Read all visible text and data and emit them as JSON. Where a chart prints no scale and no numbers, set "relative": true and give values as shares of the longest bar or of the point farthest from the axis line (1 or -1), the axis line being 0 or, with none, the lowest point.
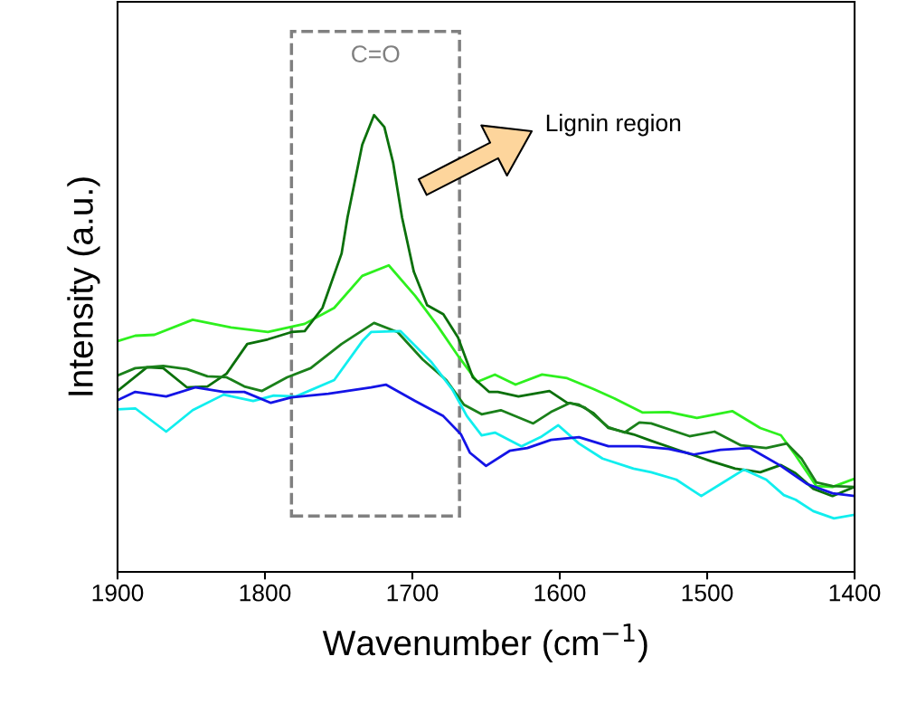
{
  "chart_data": {
    "type": "line",
    "relative": true,
    "xlabel": "Wavenumber (cm$^{−1}$)",
    "ylabel": "Intensity (a.u.)",
    "xlim": [
      1900,
      1400
    ],
    "xticks": [
      1900,
      1800,
      1700,
      1600,
      1500,
      1400
    ],
    "tick_labels": "x",
    "grid": false,
    "legend": false,
    "line_style": "solid",
    "annotations": [
      "C=O",
      "Lignin region"
    ],
    "series": [
      {
        "color": "#2ef01e",
        "x": [
          1900,
          1888,
          1875,
          1849,
          1823,
          1798,
          1773,
          1753,
          1734,
          1716,
          1698,
          1683,
          1669,
          1656,
          1644,
          1630,
          1612,
          1595,
          1577,
          1563,
          1544,
          1526,
          1507,
          1483,
          1464,
          1450,
          1440,
          1426,
          1415,
          1400
        ],
        "values": [
          0.505,
          0.517,
          0.519,
          0.552,
          0.535,
          0.525,
          0.543,
          0.578,
          0.648,
          0.671,
          0.604,
          0.539,
          0.473,
          0.416,
          0.432,
          0.41,
          0.432,
          0.424,
          0.4,
          0.38,
          0.349,
          0.35,
          0.337,
          0.352,
          0.315,
          0.299,
          0.255,
          0.188,
          0.186,
          0.204
        ]
      },
      {
        "color": "#0b700b",
        "x": [
          1900,
          1880,
          1869,
          1853,
          1839,
          1826,
          1812,
          1798,
          1782,
          1773,
          1761,
          1748,
          1744,
          1734,
          1726,
          1719,
          1713,
          1707,
          1699,
          1690,
          1679,
          1669,
          1659,
          1648,
          1642,
          1628,
          1607,
          1595,
          1587,
          1577,
          1567,
          1550,
          1538,
          1518,
          1497,
          1481,
          1464,
          1450,
          1440,
          1428,
          1415,
          1400
        ],
        "values": [
          0.396,
          0.448,
          0.446,
          0.404,
          0.406,
          0.434,
          0.499,
          0.509,
          0.525,
          0.527,
          0.578,
          0.697,
          0.776,
          0.935,
          1.0,
          0.974,
          0.895,
          0.776,
          0.657,
          0.584,
          0.564,
          0.513,
          0.426,
          0.394,
          0.394,
          0.384,
          0.396,
          0.37,
          0.366,
          0.347,
          0.315,
          0.301,
          0.287,
          0.265,
          0.242,
          0.226,
          0.218,
          0.234,
          0.216,
          0.182,
          0.166,
          0.186
        ]
      },
      {
        "color": "#1a801a",
        "x": [
          1900,
          1888,
          1869,
          1853,
          1839,
          1826,
          1814,
          1802,
          1785,
          1769,
          1748,
          1726,
          1710,
          1693,
          1677,
          1665,
          1653,
          1640,
          1618,
          1606,
          1593,
          1583,
          1567,
          1556,
          1546,
          1538,
          1512,
          1495,
          1477,
          1460,
          1446,
          1436,
          1426,
          1415,
          1400
        ],
        "values": [
          0.43,
          0.446,
          0.451,
          0.444,
          0.428,
          0.426,
          0.406,
          0.396,
          0.426,
          0.446,
          0.499,
          0.545,
          0.525,
          0.465,
          0.42,
          0.366,
          0.345,
          0.354,
          0.325,
          0.35,
          0.37,
          0.36,
          0.317,
          0.305,
          0.327,
          0.325,
          0.297,
          0.307,
          0.277,
          0.271,
          0.281,
          0.248,
          0.196,
          0.188,
          0.186
        ]
      },
      {
        "color": "#11eeee",
        "x": [
          1900,
          1888,
          1867,
          1849,
          1828,
          1808,
          1794,
          1779,
          1753,
          1734,
          1728,
          1708,
          1687,
          1673,
          1663,
          1653,
          1644,
          1626,
          1613,
          1601,
          1587,
          1571,
          1550,
          1538,
          1521,
          1504,
          1489,
          1475,
          1460,
          1448,
          1440,
          1428,
          1414,
          1400
        ],
        "values": [
          0.356,
          0.358,
          0.307,
          0.354,
          0.388,
          0.374,
          0.386,
          0.384,
          0.42,
          0.505,
          0.525,
          0.527,
          0.459,
          0.4,
          0.341,
          0.299,
          0.305,
          0.275,
          0.295,
          0.321,
          0.281,
          0.248,
          0.226,
          0.218,
          0.202,
          0.166,
          0.196,
          0.224,
          0.202,
          0.168,
          0.158,
          0.133,
          0.117,
          0.125
        ]
      },
      {
        "color": "#1414e6",
        "x": [
          1900,
          1888,
          1867,
          1847,
          1828,
          1814,
          1796,
          1782,
          1757,
          1728,
          1718,
          1698,
          1679,
          1667,
          1661,
          1650,
          1634,
          1622,
          1606,
          1587,
          1567,
          1546,
          1526,
          1509,
          1491,
          1471,
          1450,
          1432,
          1415,
          1400
        ],
        "values": [
          0.376,
          0.394,
          0.384,
          0.404,
          0.394,
          0.394,
          0.37,
          0.382,
          0.39,
          0.404,
          0.41,
          0.374,
          0.341,
          0.301,
          0.261,
          0.232,
          0.265,
          0.271,
          0.289,
          0.295,
          0.275,
          0.275,
          0.269,
          0.257,
          0.267,
          0.271,
          0.232,
          0.192,
          0.172,
          0.166
        ]
      }
    ]
  }
}
